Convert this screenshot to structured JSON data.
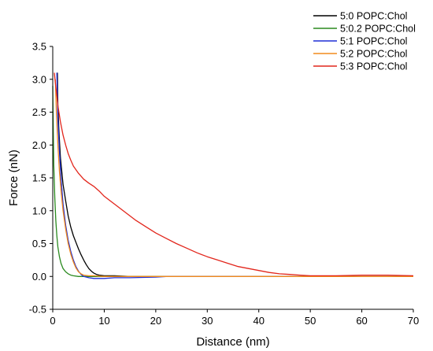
{
  "chart_data": {
    "type": "line",
    "xlabel": "Distance (nm)",
    "ylabel": "Force (nN)",
    "xlim": [
      0,
      70
    ],
    "ylim": [
      -0.5,
      3.5
    ],
    "xticks": [
      0,
      10,
      20,
      30,
      40,
      50,
      60,
      70
    ],
    "yticks": [
      -0.5,
      0.0,
      0.5,
      1.0,
      1.5,
      2.0,
      2.5,
      3.0,
      3.5
    ],
    "ytick_labels": [
      "-0.5",
      "0.0",
      "0.5",
      "1.0",
      "1.5",
      "2.0",
      "2.5",
      "3.0",
      "3.5"
    ],
    "grid": false,
    "legend_position": "top-right",
    "series": [
      {
        "name": "5:0 POPC:Chol",
        "color": "#000000",
        "x": [
          0.9,
          1.0,
          1.2,
          1.5,
          2.0,
          2.5,
          3.0,
          3.5,
          4.0,
          4.5,
          5.0,
          5.5,
          6.0,
          6.5,
          7.0,
          7.5,
          8.0,
          8.5,
          9.0,
          10,
          12,
          15,
          20,
          30,
          40,
          50,
          60,
          70
        ],
        "y": [
          3.1,
          2.6,
          2.2,
          1.8,
          1.4,
          1.15,
          0.92,
          0.75,
          0.62,
          0.52,
          0.42,
          0.33,
          0.25,
          0.18,
          0.12,
          0.08,
          0.05,
          0.03,
          0.02,
          0.01,
          0.01,
          0.0,
          0.0,
          0.0,
          0.0,
          0.0,
          0.0,
          0.0
        ]
      },
      {
        "name": "5:0.2 POPC:Chol",
        "color": "#2a8a1f",
        "x": [
          0.0,
          0.1,
          0.2,
          0.4,
          0.6,
          0.8,
          1.0,
          1.3,
          1.6,
          2.0,
          2.5,
          3.0,
          3.5,
          4.0,
          5.0,
          6.0,
          8.0,
          10,
          15,
          20,
          30,
          40,
          50,
          60,
          70
        ],
        "y": [
          2.9,
          2.2,
          1.7,
          1.2,
          0.85,
          0.62,
          0.45,
          0.3,
          0.2,
          0.12,
          0.07,
          0.04,
          0.02,
          0.01,
          0.0,
          0.0,
          0.0,
          0.0,
          0.0,
          0.0,
          0.0,
          0.0,
          0.0,
          0.0,
          0.0
        ]
      },
      {
        "name": "5:1 POPC:Chol",
        "color": "#1f2fd6",
        "x": [
          0.8,
          1.0,
          1.3,
          1.6,
          2.0,
          2.5,
          3.0,
          3.5,
          4.0,
          4.5,
          5.0,
          5.5,
          6.0,
          7.0,
          8.0,
          9.0,
          10,
          12,
          15,
          20,
          22,
          30,
          40,
          50,
          60,
          70
        ],
        "y": [
          3.1,
          2.4,
          1.9,
          1.5,
          1.1,
          0.78,
          0.55,
          0.38,
          0.25,
          0.15,
          0.08,
          0.03,
          0.0,
          -0.02,
          -0.03,
          -0.03,
          -0.03,
          -0.02,
          -0.02,
          -0.01,
          0.0,
          0.0,
          0.0,
          0.0,
          0.0,
          0.0
        ]
      },
      {
        "name": "5:2 POPC:Chol",
        "color": "#f28a1c",
        "x": [
          0.5,
          0.7,
          1.0,
          1.3,
          1.6,
          2.0,
          2.5,
          3.0,
          3.5,
          4.0,
          4.5,
          5.0,
          5.5,
          6.0,
          7.0,
          8.0,
          10,
          15,
          20,
          30,
          40,
          50,
          60,
          70
        ],
        "y": [
          3.0,
          2.5,
          2.0,
          1.6,
          1.3,
          1.0,
          0.72,
          0.5,
          0.34,
          0.22,
          0.13,
          0.07,
          0.04,
          0.02,
          0.01,
          0.01,
          0.0,
          0.0,
          0.0,
          0.0,
          0.0,
          0.0,
          0.0,
          0.0
        ]
      },
      {
        "name": "5:3 POPC:Chol",
        "color": "#e2261c",
        "x": [
          0.3,
          0.5,
          0.8,
          1.0,
          1.5,
          2.0,
          2.5,
          3.0,
          3.5,
          4.0,
          5.0,
          6.0,
          7.0,
          8.0,
          9.0,
          10,
          12,
          14,
          16,
          18,
          20,
          22,
          24,
          26,
          28,
          30,
          32,
          34,
          36,
          38,
          40,
          42,
          44,
          46,
          48,
          50,
          55,
          60,
          65,
          70
        ],
        "y": [
          3.1,
          2.95,
          2.75,
          2.6,
          2.35,
          2.15,
          2.0,
          1.87,
          1.77,
          1.68,
          1.57,
          1.48,
          1.42,
          1.37,
          1.3,
          1.22,
          1.1,
          0.98,
          0.86,
          0.76,
          0.66,
          0.58,
          0.5,
          0.43,
          0.36,
          0.3,
          0.25,
          0.2,
          0.15,
          0.12,
          0.09,
          0.06,
          0.04,
          0.03,
          0.02,
          0.01,
          0.01,
          0.02,
          0.02,
          0.01
        ]
      }
    ]
  }
}
